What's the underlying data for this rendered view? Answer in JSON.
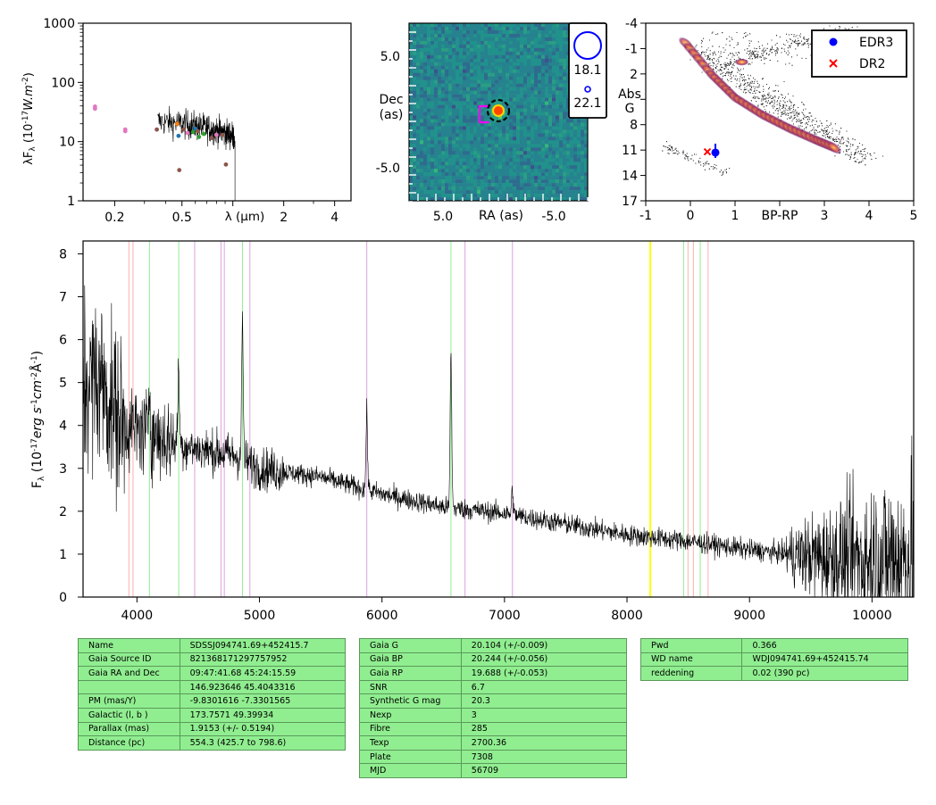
{
  "chart_data": [
    {
      "type": "scatter",
      "title": "",
      "xlabel": "λ (μm)",
      "ylabel": "λF_λ (10^-17 W.m^-2)",
      "xscale": "log",
      "yscale": "log",
      "xlim": [
        0.13,
        5.0
      ],
      "ylim": [
        1,
        1000
      ],
      "xticks": [
        "0.2",
        "0.5",
        "1",
        "2",
        "4"
      ],
      "yticks": [
        "1",
        "10",
        "100",
        "1000"
      ],
      "points": [
        {
          "x": 0.153,
          "y": 39,
          "color": "#e377c2"
        },
        {
          "x": 0.153,
          "y": 36,
          "color": "#e377c2"
        },
        {
          "x": 0.231,
          "y": 16,
          "color": "#e377c2"
        },
        {
          "x": 0.231,
          "y": 15,
          "color": "#e377c2"
        },
        {
          "x": 0.355,
          "y": 16,
          "color": "#8c564b"
        },
        {
          "x": 0.468,
          "y": 20,
          "color": "#ff7f0e"
        },
        {
          "x": 0.477,
          "y": 12.5,
          "color": "#1f77b4"
        },
        {
          "x": 0.482,
          "y": 3.3,
          "color": "#8c564b"
        },
        {
          "x": 0.51,
          "y": 16,
          "color": "#8c564b"
        },
        {
          "x": 0.54,
          "y": 14,
          "color": "#e377c2"
        },
        {
          "x": 0.582,
          "y": 14.5,
          "color": "#2ca02c"
        },
        {
          "x": 0.6,
          "y": 16.5,
          "color": "#1f77b4"
        },
        {
          "x": 0.62,
          "y": 15,
          "color": "#8c564b"
        },
        {
          "x": 0.63,
          "y": 12,
          "color": "#2ca02c"
        },
        {
          "x": 0.673,
          "y": 13.5,
          "color": "#2ca02c"
        },
        {
          "x": 0.75,
          "y": 11.5,
          "color": "#8c564b"
        },
        {
          "x": 0.8,
          "y": 13,
          "color": "#e377c2"
        },
        {
          "x": 0.87,
          "y": 13,
          "color": "#8c564b"
        },
        {
          "x": 0.91,
          "y": 4.1,
          "color": "#8c564b"
        }
      ],
      "spectrum_range_um": [
        0.36,
        1.03
      ]
    },
    {
      "type": "heatmap",
      "title": "",
      "xlabel": "RA (as)",
      "ylabel": "Dec (as)",
      "xlim": [
        10,
        -10
      ],
      "ylim": [
        -10,
        10
      ],
      "xticks": [
        "5.0",
        "-5.0"
      ],
      "yticks": [
        "5.0",
        "-5.0"
      ],
      "target": {
        "x": 0,
        "y": 0
      },
      "proper_motion_marker": {
        "x": 1.5,
        "y": -0.6
      },
      "legend": [
        {
          "label": "18.1",
          "size": "large"
        },
        {
          "label": "22.1",
          "size": "small"
        }
      ]
    },
    {
      "type": "scatter",
      "title": "",
      "xlabel": "BP-RP",
      "ylabel": "Abs G",
      "xlim": [
        -1,
        5
      ],
      "ylim": [
        17,
        -4
      ],
      "xticks": [
        "-1",
        "0",
        "1",
        "3",
        "4",
        "5"
      ],
      "yticks": [
        "-4",
        "-1",
        "2",
        "5",
        "8",
        "11",
        "14",
        "17"
      ],
      "series": [
        {
          "name": "EDR3",
          "x": [
            0.56
          ],
          "y": [
            11.3
          ],
          "color": "#0000ff",
          "marker": "circle"
        },
        {
          "name": "DR2",
          "x": [
            0.38
          ],
          "y": [
            11.2
          ],
          "color": "#ff0000",
          "marker": "x"
        }
      ],
      "legend_position": "top-right"
    },
    {
      "type": "line",
      "title": "",
      "xlabel": "",
      "ylabel": "F_λ (10^-17 erg s^-1 cm^-2 Å^-1)",
      "xlim": [
        3560,
        10340
      ],
      "ylim": [
        0,
        8.3
      ],
      "xticks": [
        "4000",
        "5000",
        "6000",
        "7000",
        "8000",
        "9000",
        "10000"
      ],
      "yticks": [
        "0",
        "1",
        "2",
        "3",
        "4",
        "5",
        "6",
        "7",
        "8"
      ],
      "continuum_points": [
        [
          3560,
          5.0
        ],
        [
          3700,
          5.1
        ],
        [
          3800,
          4.4
        ],
        [
          3900,
          4.0
        ],
        [
          4000,
          3.9
        ],
        [
          4200,
          3.7
        ],
        [
          4400,
          3.5
        ],
        [
          4600,
          3.4
        ],
        [
          4800,
          3.3
        ],
        [
          5000,
          3.0
        ],
        [
          5500,
          2.8
        ],
        [
          6000,
          2.4
        ],
        [
          6500,
          2.1
        ],
        [
          7000,
          1.95
        ],
        [
          7500,
          1.7
        ],
        [
          8000,
          1.45
        ],
        [
          8500,
          1.3
        ],
        [
          9000,
          1.1
        ],
        [
          9500,
          0.95
        ],
        [
          10000,
          0.85
        ],
        [
          10340,
          0.9
        ]
      ],
      "emission_lines": [
        [
          4101,
          1.2
        ],
        [
          4340,
          1.8
        ],
        [
          4861,
          3.2
        ],
        [
          5876,
          1.8
        ],
        [
          6563,
          3.6
        ],
        [
          7065,
          0.6
        ]
      ],
      "reference_lines": [
        {
          "x": 3934,
          "color": "#ffb0b0"
        },
        {
          "x": 3968,
          "color": "#ffb0b0"
        },
        {
          "x": 4102,
          "color": "#90ee90"
        },
        {
          "x": 4341,
          "color": "#90ee90"
        },
        {
          "x": 4471,
          "color": "#dda0dd"
        },
        {
          "x": 4686,
          "color": "#dda0dd"
        },
        {
          "x": 4713,
          "color": "#dda0dd"
        },
        {
          "x": 4861,
          "color": "#90ee90"
        },
        {
          "x": 4922,
          "color": "#dda0dd"
        },
        {
          "x": 5876,
          "color": "#dda0dd"
        },
        {
          "x": 6563,
          "color": "#90ee90"
        },
        {
          "x": 6678,
          "color": "#dda0dd"
        },
        {
          "x": 7065,
          "color": "#dda0dd"
        },
        {
          "x": 8190,
          "color": "#ffff00"
        },
        {
          "x": 8462,
          "color": "#90ee90"
        },
        {
          "x": 8498,
          "color": "#ffb0b0"
        },
        {
          "x": 8542,
          "color": "#ffb0b0"
        },
        {
          "x": 8598,
          "color": "#90ee90"
        },
        {
          "x": 8662,
          "color": "#ffb0b0"
        }
      ]
    }
  ],
  "tables": {
    "left": [
      [
        "Name",
        "SDSSJ094741.69+452415.7"
      ],
      [
        "Gaia Source ID",
        "821368171297757952"
      ],
      [
        "Gaia RA and Dec",
        "09:47:41.68    45:24:15.59"
      ],
      [
        "",
        "146.923646    45.4043316"
      ],
      [
        "PM (mas/Y)",
        "-9.8301616    -7.3301565"
      ],
      [
        "Galactic (l, b )",
        "173.7571    49.39934"
      ],
      [
        "Parallax (mas)",
        "1.9153 (+/- 0.5194)"
      ],
      [
        "Distance (pc)",
        "554.3 (425.7 to 798.6)"
      ]
    ],
    "middle": [
      [
        "Gaia G",
        "20.104 (+/-0.009)"
      ],
      [
        "Gaia BP",
        "20.244 (+/-0.056)"
      ],
      [
        "Gaia RP",
        "19.688 (+/-0.053)"
      ],
      [
        "SNR",
        "6.7"
      ],
      [
        "Synthetic G mag",
        "20.3"
      ],
      [
        "Nexp",
        "3"
      ],
      [
        "Fibre",
        "285"
      ],
      [
        "Texp",
        "2700.36"
      ],
      [
        "Plate",
        "7308"
      ],
      [
        "MJD",
        "56709"
      ]
    ],
    "right": [
      [
        "Pwd",
        "0.366"
      ],
      [
        "WD name",
        "WDJ094741.69+452415.74"
      ],
      [
        "reddening",
        "0.02 (390 pc)"
      ]
    ]
  }
}
